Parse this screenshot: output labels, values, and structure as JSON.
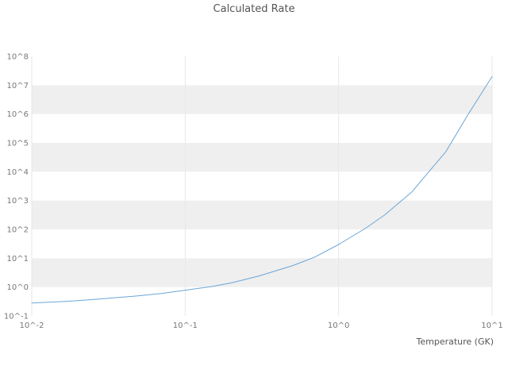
{
  "chart_data": {
    "type": "line",
    "title": "Calculated Rate",
    "xlabel": "Temperature (GK)",
    "ylabel": "",
    "x_scale": "log",
    "y_scale": "log",
    "xlim": [
      0.01,
      10
    ],
    "ylim": [
      0.1,
      100000000
    ],
    "x_ticks": [
      "10^-2",
      "10^-1",
      "10^0",
      "10^1"
    ],
    "x_tick_values": [
      0.01,
      0.1,
      1,
      10
    ],
    "y_ticks": [
      "10^-1",
      "10^0",
      "10^1",
      "10^2",
      "10^3",
      "10^4",
      "10^5",
      "10^6",
      "10^7",
      "10^8"
    ],
    "y_tick_values": [
      0.1,
      1,
      10,
      100,
      1000,
      10000,
      100000,
      1000000,
      10000000,
      100000000
    ],
    "grid": true,
    "band_fill_color": "#efefef",
    "gridline_color": "#e7e7e7",
    "legend": "none",
    "series": [
      {
        "name": "calculated-rate",
        "color": "#6aa6d8",
        "x": [
          0.01,
          0.015,
          0.02,
          0.03,
          0.05,
          0.07,
          0.1,
          0.15,
          0.2,
          0.3,
          0.5,
          0.7,
          1,
          1.5,
          2,
          3,
          5,
          7,
          10
        ],
        "y": [
          0.28,
          0.31,
          0.34,
          0.4,
          0.5,
          0.6,
          0.78,
          1.05,
          1.4,
          2.4,
          5.5,
          11,
          30,
          110,
          320,
          2000,
          50000,
          1000000,
          20000000
        ]
      }
    ]
  }
}
